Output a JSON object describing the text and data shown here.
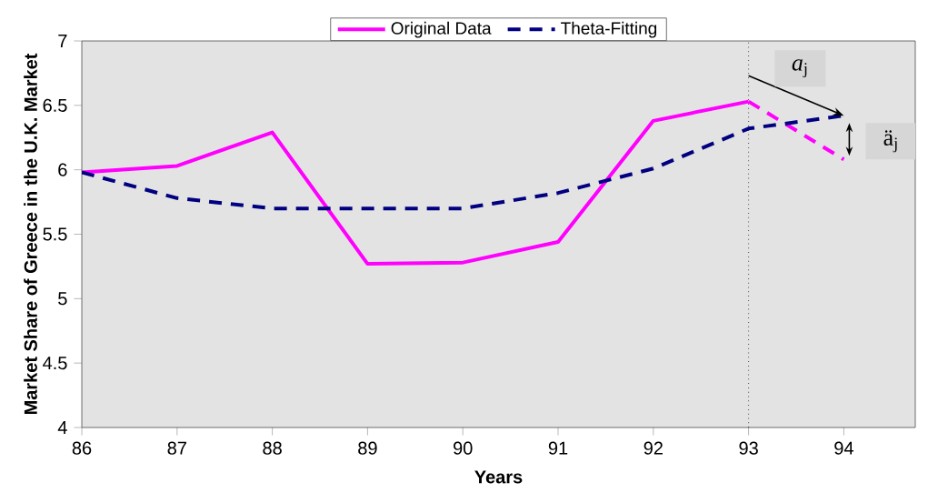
{
  "chart_data": {
    "type": "line",
    "xlabel": "Years",
    "ylabel": "Market Share of Greece in the U.K. Market",
    "x": [
      86,
      87,
      88,
      89,
      90,
      91,
      92,
      93,
      94
    ],
    "series": [
      {
        "name": "Original Data",
        "color": "#ff00ff",
        "line_style": "solid",
        "values": [
          5.98,
          6.03,
          6.29,
          5.27,
          5.28,
          5.44,
          6.38,
          6.53,
          null
        ]
      },
      {
        "color": "#ff00ff",
        "line_style": "dashed",
        "x": [
          93,
          94
        ],
        "values": [
          6.53,
          6.08
        ]
      },
      {
        "name": "Theta-Fitting",
        "color": "#000080",
        "line_style": "dashed",
        "values": [
          5.98,
          5.78,
          5.7,
          5.7,
          5.7,
          5.82,
          6.01,
          6.32,
          6.42
        ]
      }
    ],
    "xlim": [
      86,
      94.75
    ],
    "ylim": [
      4,
      7
    ],
    "xticks": [
      86,
      87,
      88,
      89,
      90,
      91,
      92,
      93,
      94
    ],
    "yticks": [
      4,
      4.5,
      5,
      5.5,
      6,
      6.5,
      7
    ],
    "ref_lines": [
      {
        "axis": "x",
        "value": 93,
        "color": "#000000",
        "line_style": "dotted"
      }
    ],
    "annotations": [
      {
        "text": "*a*$_{j}$",
        "x": 94,
        "y": 6.42
      },
      {
        "text": "ä$_{j}$",
        "x": 94,
        "y": 6.08
      }
    ],
    "grid": false,
    "legend": "top",
    "marker": "none"
  }
}
